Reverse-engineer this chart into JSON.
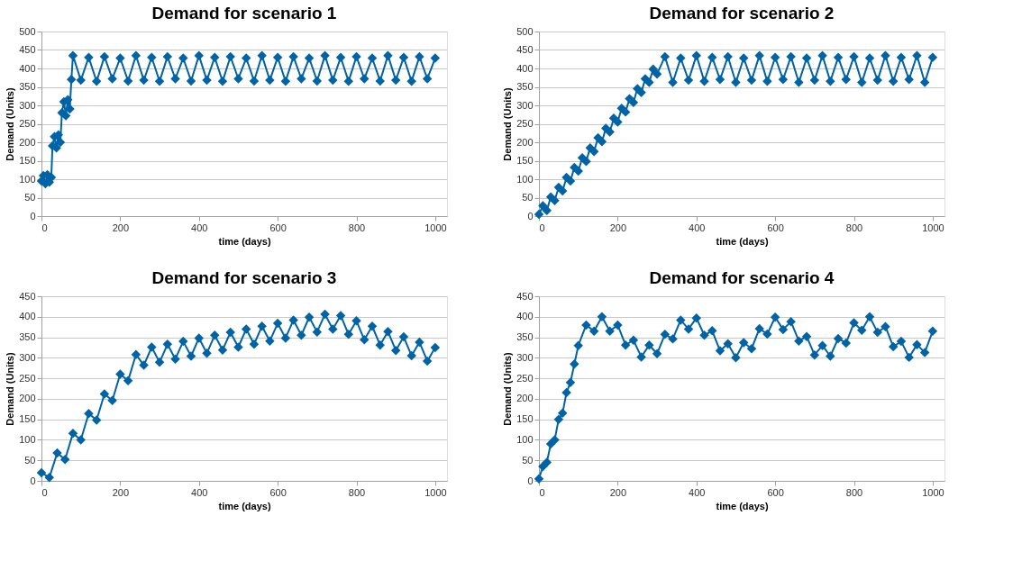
{
  "chart_data": [
    {
      "type": "line",
      "title": "Demand for scenario 1",
      "xlabel": "time (days)",
      "ylabel": "Demand (Units)",
      "xlim": [
        0,
        1030
      ],
      "xticks": [
        0,
        200,
        400,
        600,
        800,
        1000
      ],
      "ylim": [
        0,
        500
      ],
      "yticks": [
        0,
        50,
        100,
        150,
        200,
        250,
        300,
        350,
        400,
        450,
        500
      ],
      "grid": "y",
      "marker": "diamond",
      "series": [
        {
          "color": "#0063a6",
          "x": [
            0,
            5,
            10,
            15,
            20,
            25,
            28,
            33,
            38,
            43,
            48,
            52,
            57,
            62,
            67,
            72,
            76,
            80,
            100,
            120,
            140,
            160,
            180,
            200,
            220,
            240,
            260,
            280,
            300,
            320,
            340,
            360,
            380,
            400,
            420,
            440,
            460,
            480,
            500,
            520,
            540,
            560,
            580,
            600,
            620,
            640,
            660,
            680,
            700,
            720,
            740,
            760,
            780,
            800,
            820,
            840,
            860,
            880,
            900,
            920,
            940,
            960,
            980,
            1000
          ],
          "values": [
            95,
            110,
            88,
            112,
            92,
            105,
            190,
            215,
            185,
            220,
            200,
            280,
            310,
            272,
            315,
            290,
            370,
            435,
            368,
            430,
            365,
            432,
            372,
            428,
            366,
            435,
            368,
            430,
            365,
            432,
            372,
            428,
            366,
            435,
            368,
            430,
            365,
            432,
            372,
            428,
            366,
            435,
            368,
            430,
            365,
            432,
            372,
            428,
            366,
            435,
            368,
            430,
            365,
            432,
            372,
            428,
            366,
            435,
            368,
            430,
            365,
            432,
            372,
            428
          ]
        }
      ]
    },
    {
      "type": "line",
      "title": "Demand for scenario 2",
      "xlabel": "time (days)",
      "ylabel": "Demand (Units)",
      "xlim": [
        0,
        1030
      ],
      "xticks": [
        0,
        200,
        400,
        600,
        800,
        1000
      ],
      "ylim": [
        0,
        500
      ],
      "yticks": [
        0,
        50,
        100,
        150,
        200,
        250,
        300,
        350,
        400,
        450,
        500
      ],
      "grid": "y",
      "marker": "diamond",
      "series": [
        {
          "color": "#0063a6",
          "x": [
            0,
            10,
            20,
            30,
            40,
            50,
            60,
            70,
            80,
            90,
            100,
            110,
            120,
            130,
            140,
            150,
            160,
            170,
            180,
            190,
            200,
            210,
            220,
            230,
            240,
            250,
            260,
            270,
            280,
            290,
            300,
            320,
            340,
            360,
            380,
            400,
            420,
            440,
            460,
            480,
            500,
            520,
            540,
            560,
            580,
            600,
            620,
            640,
            660,
            680,
            700,
            720,
            740,
            760,
            780,
            800,
            820,
            840,
            860,
            880,
            900,
            920,
            940,
            960,
            980,
            1000
          ],
          "values": [
            5,
            28,
            15,
            52,
            42,
            78,
            68,
            105,
            95,
            132,
            122,
            158,
            148,
            185,
            175,
            212,
            202,
            238,
            228,
            265,
            255,
            292,
            282,
            318,
            308,
            345,
            335,
            372,
            362,
            398,
            385,
            432,
            362,
            428,
            368,
            435,
            365,
            430,
            370,
            432,
            362,
            428,
            368,
            435,
            365,
            430,
            370,
            432,
            362,
            428,
            368,
            435,
            365,
            430,
            370,
            432,
            362,
            428,
            368,
            435,
            365,
            430,
            370,
            435,
            362,
            430
          ]
        }
      ]
    },
    {
      "type": "line",
      "title": "Demand for scenario 3",
      "xlabel": "time (days)",
      "ylabel": "Demand (Units)",
      "xlim": [
        0,
        1030
      ],
      "xticks": [
        0,
        200,
        400,
        600,
        800,
        1000
      ],
      "ylim": [
        0,
        450
      ],
      "yticks": [
        0,
        50,
        100,
        150,
        200,
        250,
        300,
        350,
        400,
        450
      ],
      "grid": "y",
      "marker": "diamond",
      "series": [
        {
          "color": "#0063a6",
          "x": [
            0,
            20,
            40,
            60,
            80,
            100,
            120,
            140,
            160,
            180,
            200,
            220,
            240,
            260,
            280,
            300,
            320,
            340,
            360,
            380,
            400,
            420,
            440,
            460,
            480,
            500,
            520,
            540,
            560,
            580,
            600,
            620,
            640,
            660,
            680,
            700,
            720,
            740,
            760,
            780,
            800,
            820,
            840,
            860,
            880,
            900,
            920,
            940,
            960,
            980,
            1000
          ],
          "values": [
            20,
            8,
            68,
            52,
            116,
            100,
            164,
            148,
            212,
            196,
            260,
            244,
            308,
            282,
            326,
            289,
            333,
            297,
            340,
            304,
            348,
            311,
            355,
            319,
            362,
            326,
            370,
            333,
            377,
            341,
            384,
            348,
            392,
            355,
            399,
            363,
            406,
            370,
            403,
            357,
            390,
            344,
            377,
            331,
            364,
            318,
            351,
            305,
            338,
            292,
            325
          ]
        }
      ]
    },
    {
      "type": "line",
      "title": "Demand for scenario 4",
      "xlabel": "time (days)",
      "ylabel": "Demand (Units)",
      "xlim": [
        0,
        1030
      ],
      "xticks": [
        0,
        200,
        400,
        600,
        800,
        1000
      ],
      "ylim": [
        0,
        450
      ],
      "yticks": [
        0,
        50,
        100,
        150,
        200,
        250,
        300,
        350,
        400,
        450
      ],
      "grid": "y",
      "marker": "diamond",
      "series": [
        {
          "color": "#0063a6",
          "x": [
            0,
            10,
            20,
            30,
            40,
            50,
            60,
            70,
            80,
            90,
            100,
            120,
            140,
            160,
            180,
            200,
            220,
            240,
            260,
            280,
            300,
            320,
            340,
            360,
            380,
            400,
            420,
            440,
            460,
            480,
            500,
            520,
            540,
            560,
            580,
            600,
            620,
            640,
            660,
            680,
            700,
            720,
            740,
            760,
            780,
            800,
            820,
            840,
            860,
            880,
            900,
            920,
            940,
            960,
            980,
            1000
          ],
          "values": [
            5,
            35,
            45,
            90,
            100,
            150,
            165,
            215,
            240,
            285,
            330,
            380,
            365,
            400,
            365,
            380,
            331,
            343,
            302,
            331,
            310,
            357,
            346,
            392,
            370,
            397,
            355,
            366,
            317,
            334,
            300,
            337,
            322,
            371,
            358,
            399,
            369,
            388,
            341,
            352,
            307,
            330,
            304,
            347,
            336,
            385,
            367,
            400,
            362,
            376,
            327,
            340,
            301,
            332,
            313,
            365
          ]
        }
      ]
    }
  ]
}
